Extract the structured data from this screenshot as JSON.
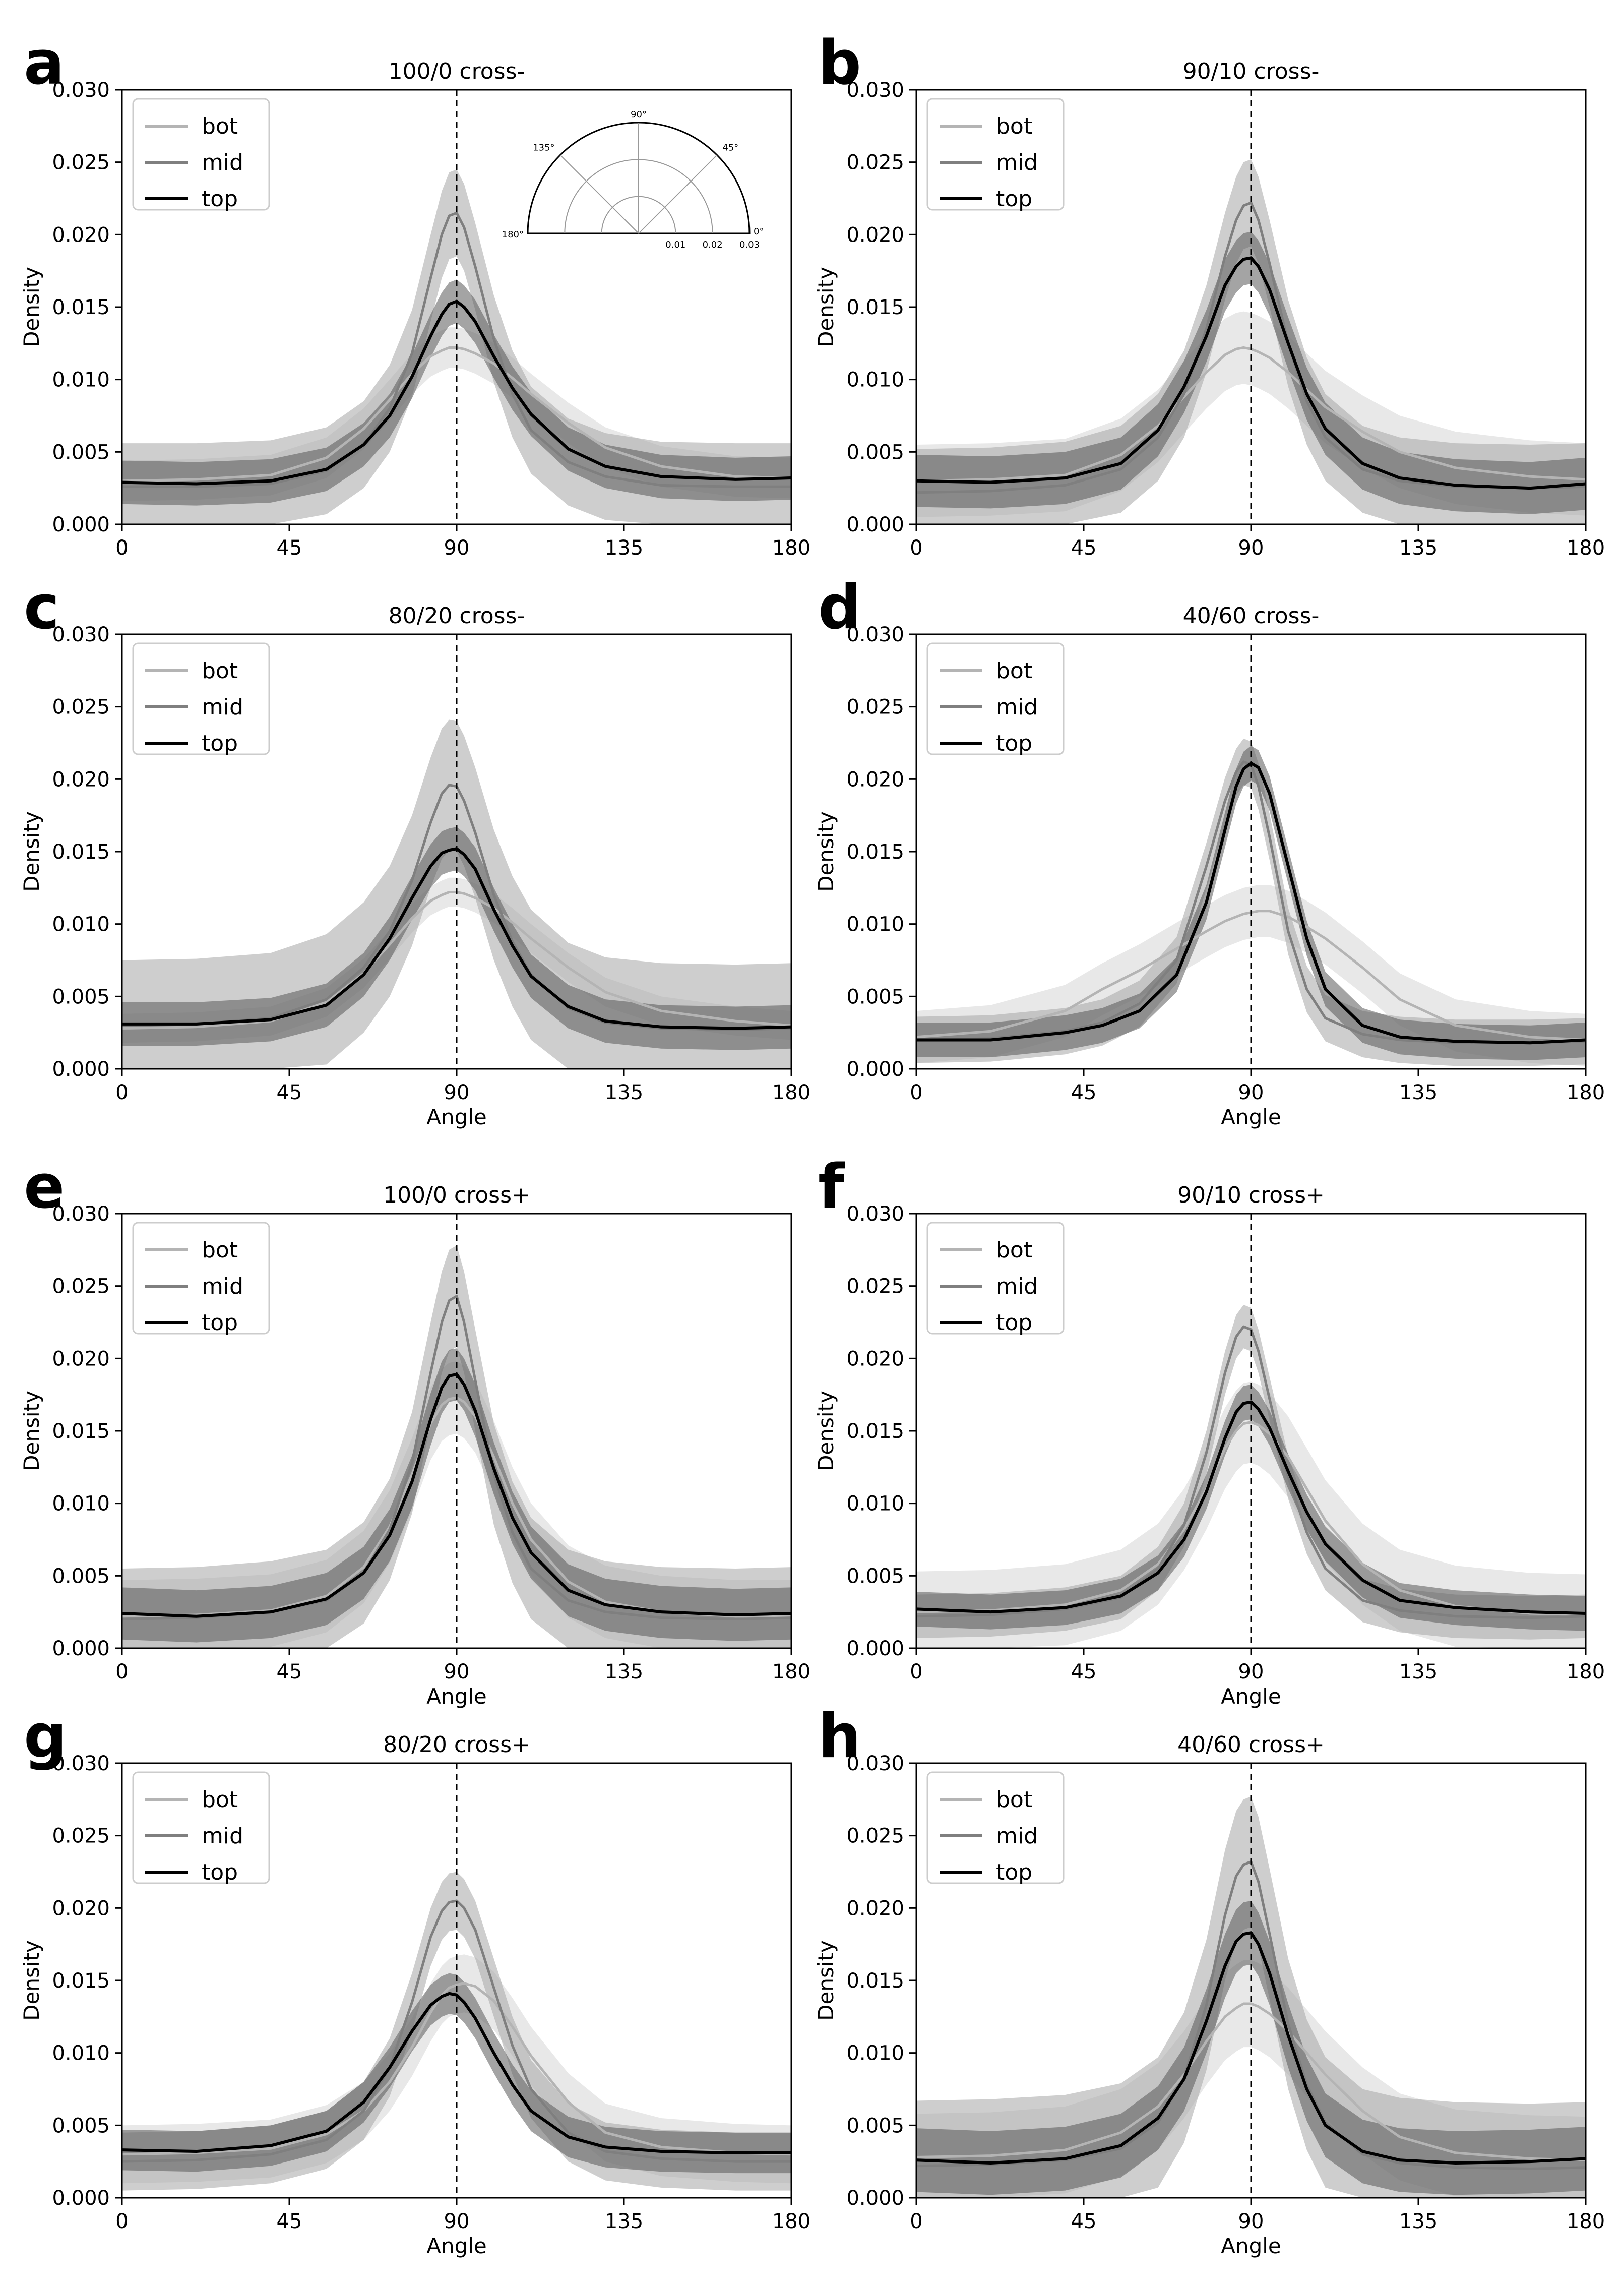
{
  "figure": {
    "xlim": [
      0,
      180
    ],
    "ylim": [
      0,
      0.03
    ],
    "x_ticks": [
      0,
      45,
      90,
      135,
      180
    ],
    "x_tick_labels": [
      "0",
      "45",
      "90",
      "135",
      "180"
    ],
    "y_ticks": [
      0,
      0.005,
      0.01,
      0.015,
      0.02,
      0.025,
      0.03
    ],
    "y_tick_labels": [
      "0.000",
      "0.005",
      "0.010",
      "0.015",
      "0.020",
      "0.025",
      "0.030"
    ],
    "ylabel": "Density",
    "xlabel": "Angle",
    "reference_angle": 90,
    "series_style": {
      "bot": {
        "color": "#b4b4b4",
        "band": "#d6d6d6"
      },
      "mid": {
        "color": "#7f7f7f",
        "band": "#a6a6a6"
      },
      "top": {
        "color": "#000000",
        "band": "#5a5a5a"
      }
    }
  },
  "inset": {
    "panel": "a",
    "angle_labels": [
      "90°",
      "135°",
      "45°",
      "180°",
      "0°"
    ],
    "radius_labels": [
      "0.01",
      "0.02",
      "0.03"
    ]
  },
  "chart_data": [
    {
      "type": "line",
      "panel": "a",
      "title": "100/0  cross-",
      "xlabel": "",
      "x": [
        0,
        20,
        40,
        55,
        65,
        72,
        78,
        83,
        86,
        88,
        90,
        92,
        95,
        100,
        105,
        110,
        120,
        130,
        145,
        165,
        180
      ],
      "series": [
        {
          "name": "bot",
          "band": 0.0014,
          "values": [
            0.003,
            0.0031,
            0.0034,
            0.0046,
            0.0066,
            0.0086,
            0.0104,
            0.0116,
            0.012,
            0.0122,
            0.0122,
            0.0121,
            0.0118,
            0.0111,
            0.0101,
            0.009,
            0.007,
            0.0053,
            0.004,
            0.0033,
            0.0032
          ]
        },
        {
          "name": "mid",
          "band": 0.003,
          "values": [
            0.0026,
            0.0026,
            0.0028,
            0.0037,
            0.0055,
            0.008,
            0.0118,
            0.017,
            0.02,
            0.0213,
            0.0215,
            0.0205,
            0.0178,
            0.0128,
            0.009,
            0.0065,
            0.0043,
            0.0033,
            0.0027,
            0.0026,
            0.0026
          ]
        },
        {
          "name": "top",
          "band": 0.0015,
          "values": [
            0.0029,
            0.0028,
            0.003,
            0.0038,
            0.0055,
            0.0075,
            0.0102,
            0.013,
            0.0145,
            0.0152,
            0.0154,
            0.015,
            0.014,
            0.0116,
            0.0094,
            0.0076,
            0.0052,
            0.004,
            0.0033,
            0.0031,
            0.0032
          ]
        }
      ]
    },
    {
      "type": "line",
      "panel": "b",
      "title": "90/10  cross-",
      "xlabel": "",
      "x": [
        0,
        20,
        40,
        55,
        65,
        72,
        78,
        83,
        86,
        88,
        90,
        92,
        95,
        100,
        105,
        110,
        120,
        130,
        145,
        165,
        180
      ],
      "series": [
        {
          "name": "bot",
          "band": 0.0025,
          "values": [
            0.003,
            0.0031,
            0.0034,
            0.0048,
            0.0068,
            0.0088,
            0.0105,
            0.0117,
            0.0121,
            0.0122,
            0.0121,
            0.0119,
            0.0115,
            0.0105,
            0.0093,
            0.0081,
            0.0064,
            0.005,
            0.0039,
            0.0033,
            0.0031
          ]
        },
        {
          "name": "mid",
          "band": 0.003,
          "values": [
            0.0022,
            0.0023,
            0.0027,
            0.0038,
            0.006,
            0.009,
            0.0135,
            0.0185,
            0.021,
            0.022,
            0.0222,
            0.021,
            0.018,
            0.0125,
            0.0085,
            0.006,
            0.0038,
            0.003,
            0.0026,
            0.0025,
            0.0026
          ]
        },
        {
          "name": "top",
          "band": 0.0018,
          "values": [
            0.003,
            0.0029,
            0.0032,
            0.0042,
            0.0065,
            0.0095,
            0.013,
            0.0165,
            0.0178,
            0.0183,
            0.0184,
            0.0178,
            0.0162,
            0.0125,
            0.009,
            0.0066,
            0.0042,
            0.0032,
            0.0027,
            0.0025,
            0.0028
          ]
        }
      ]
    },
    {
      "type": "line",
      "panel": "c",
      "title": "80/20  cross-",
      "xlabel": "Angle",
      "x": [
        0,
        20,
        40,
        55,
        65,
        72,
        78,
        83,
        86,
        88,
        90,
        92,
        95,
        100,
        105,
        110,
        120,
        130,
        145,
        165,
        180
      ],
      "series": [
        {
          "name": "bot",
          "band": 0.001,
          "values": [
            0.0028,
            0.0029,
            0.0033,
            0.0046,
            0.0066,
            0.0086,
            0.0104,
            0.0116,
            0.012,
            0.0122,
            0.0122,
            0.0121,
            0.0118,
            0.0111,
            0.0101,
            0.009,
            0.007,
            0.0053,
            0.004,
            0.0033,
            0.003
          ]
        },
        {
          "name": "mid",
          "band": 0.0045,
          "values": [
            0.003,
            0.0031,
            0.0035,
            0.0048,
            0.007,
            0.0095,
            0.013,
            0.017,
            0.019,
            0.0196,
            0.0195,
            0.0185,
            0.0163,
            0.012,
            0.0088,
            0.0065,
            0.0042,
            0.0032,
            0.0028,
            0.0027,
            0.0028
          ]
        },
        {
          "name": "top",
          "band": 0.0015,
          "values": [
            0.0031,
            0.0031,
            0.0034,
            0.0044,
            0.0065,
            0.009,
            0.0118,
            0.014,
            0.0149,
            0.0151,
            0.0152,
            0.0148,
            0.0138,
            0.011,
            0.0085,
            0.0064,
            0.0043,
            0.0033,
            0.0029,
            0.0028,
            0.0029
          ]
        }
      ]
    },
    {
      "type": "line",
      "panel": "d",
      "title": "40/60  cross-",
      "xlabel": "Angle",
      "x": [
        0,
        20,
        40,
        50,
        60,
        70,
        78,
        83,
        86,
        88,
        90,
        92,
        95,
        100,
        105,
        110,
        120,
        130,
        145,
        165,
        180
      ],
      "series": [
        {
          "name": "bot",
          "band": 0.0018,
          "values": [
            0.0022,
            0.0026,
            0.004,
            0.0055,
            0.0068,
            0.0083,
            0.0095,
            0.0102,
            0.0105,
            0.0107,
            0.0108,
            0.0109,
            0.0109,
            0.0105,
            0.0098,
            0.009,
            0.007,
            0.0048,
            0.003,
            0.0022,
            0.002
          ]
        },
        {
          "name": "mid",
          "band": 0.0016,
          "values": [
            0.002,
            0.0021,
            0.0026,
            0.0032,
            0.0045,
            0.0075,
            0.014,
            0.0185,
            0.0205,
            0.0212,
            0.021,
            0.0195,
            0.016,
            0.0095,
            0.0055,
            0.0035,
            0.0024,
            0.002,
            0.0018,
            0.0018,
            0.0019
          ]
        },
        {
          "name": "top",
          "band": 0.0012,
          "values": [
            0.002,
            0.002,
            0.0025,
            0.003,
            0.004,
            0.0065,
            0.0115,
            0.0165,
            0.0195,
            0.0207,
            0.0211,
            0.0208,
            0.019,
            0.014,
            0.009,
            0.0055,
            0.003,
            0.0022,
            0.0019,
            0.0018,
            0.002
          ]
        }
      ]
    },
    {
      "type": "line",
      "panel": "e",
      "title": "100/0  cross+",
      "xlabel": "Angle",
      "x": [
        0,
        20,
        40,
        55,
        65,
        72,
        78,
        83,
        86,
        88,
        90,
        92,
        95,
        100,
        105,
        110,
        120,
        130,
        145,
        165,
        180
      ],
      "series": [
        {
          "name": "bot",
          "band": 0.0025,
          "values": [
            0.0022,
            0.0023,
            0.0026,
            0.0036,
            0.0056,
            0.0084,
            0.012,
            0.0155,
            0.0168,
            0.0172,
            0.0173,
            0.017,
            0.016,
            0.0132,
            0.01,
            0.0075,
            0.0046,
            0.0032,
            0.0025,
            0.0022,
            0.0022
          ]
        },
        {
          "name": "mid",
          "band": 0.0035,
          "values": [
            0.002,
            0.0021,
            0.0025,
            0.0033,
            0.0052,
            0.0082,
            0.0128,
            0.019,
            0.0225,
            0.024,
            0.0243,
            0.0225,
            0.0185,
            0.012,
            0.008,
            0.0055,
            0.0033,
            0.0025,
            0.0021,
            0.002,
            0.0021
          ]
        },
        {
          "name": "top",
          "band": 0.0018,
          "values": [
            0.0024,
            0.0022,
            0.0025,
            0.0034,
            0.0052,
            0.0078,
            0.0115,
            0.0158,
            0.018,
            0.0188,
            0.0189,
            0.0182,
            0.0164,
            0.0124,
            0.009,
            0.0066,
            0.004,
            0.003,
            0.0025,
            0.0023,
            0.0024
          ]
        }
      ]
    },
    {
      "type": "line",
      "panel": "f",
      "title": "90/10  cross+",
      "xlabel": "Angle",
      "x": [
        0,
        20,
        40,
        55,
        65,
        72,
        78,
        83,
        86,
        88,
        90,
        92,
        95,
        100,
        105,
        110,
        120,
        130,
        145,
        165,
        180
      ],
      "series": [
        {
          "name": "bot",
          "band": 0.0028,
          "values": [
            0.0025,
            0.0026,
            0.003,
            0.004,
            0.0058,
            0.0082,
            0.011,
            0.0138,
            0.015,
            0.0155,
            0.0156,
            0.0154,
            0.0148,
            0.0132,
            0.011,
            0.0088,
            0.0058,
            0.004,
            0.0029,
            0.0024,
            0.0023
          ]
        },
        {
          "name": "mid",
          "band": 0.0015,
          "values": [
            0.0022,
            0.0023,
            0.0027,
            0.0035,
            0.0055,
            0.0085,
            0.0135,
            0.019,
            0.0215,
            0.0222,
            0.022,
            0.0205,
            0.0172,
            0.0118,
            0.008,
            0.0055,
            0.0033,
            0.0026,
            0.0022,
            0.0021,
            0.0022
          ]
        },
        {
          "name": "top",
          "band": 0.0012,
          "values": [
            0.0027,
            0.0025,
            0.0028,
            0.0036,
            0.0052,
            0.0075,
            0.0108,
            0.0145,
            0.0163,
            0.0169,
            0.017,
            0.0165,
            0.0152,
            0.0122,
            0.0094,
            0.0072,
            0.0047,
            0.0033,
            0.0028,
            0.0025,
            0.0024
          ]
        }
      ]
    },
    {
      "type": "line",
      "panel": "g",
      "title": "80/20  cross+",
      "xlabel": "Angle",
      "x": [
        0,
        20,
        40,
        55,
        65,
        72,
        78,
        83,
        86,
        88,
        90,
        92,
        95,
        100,
        105,
        110,
        120,
        130,
        145,
        165,
        180
      ],
      "series": [
        {
          "name": "bot",
          "band": 0.002,
          "values": [
            0.003,
            0.0031,
            0.0034,
            0.0044,
            0.006,
            0.008,
            0.0104,
            0.0128,
            0.014,
            0.0145,
            0.0147,
            0.0148,
            0.0146,
            0.0136,
            0.0118,
            0.0098,
            0.0066,
            0.0045,
            0.0035,
            0.0031,
            0.003
          ]
        },
        {
          "name": "mid",
          "band": 0.002,
          "values": [
            0.0025,
            0.0026,
            0.003,
            0.004,
            0.006,
            0.009,
            0.0135,
            0.018,
            0.0198,
            0.0204,
            0.0205,
            0.02,
            0.0185,
            0.0145,
            0.0105,
            0.0075,
            0.0045,
            0.0032,
            0.0027,
            0.0025,
            0.0025
          ]
        },
        {
          "name": "top",
          "band": 0.0014,
          "values": [
            0.0033,
            0.0032,
            0.0036,
            0.0046,
            0.0066,
            0.009,
            0.0115,
            0.0133,
            0.0139,
            0.0141,
            0.014,
            0.0135,
            0.0124,
            0.01,
            0.0078,
            0.006,
            0.0042,
            0.0035,
            0.0032,
            0.0031,
            0.0031
          ]
        }
      ]
    },
    {
      "type": "line",
      "panel": "h",
      "title": "40/60  cross+",
      "xlabel": "Angle",
      "x": [
        0,
        20,
        40,
        55,
        65,
        72,
        78,
        83,
        86,
        88,
        90,
        92,
        95,
        100,
        105,
        110,
        120,
        130,
        145,
        165,
        180
      ],
      "series": [
        {
          "name": "bot",
          "band": 0.003,
          "values": [
            0.0028,
            0.0029,
            0.0033,
            0.0045,
            0.0063,
            0.0085,
            0.0108,
            0.0125,
            0.0131,
            0.0134,
            0.0134,
            0.0132,
            0.0127,
            0.0115,
            0.01,
            0.0085,
            0.006,
            0.0042,
            0.0031,
            0.0027,
            0.0026
          ]
        },
        {
          "name": "mid",
          "band": 0.0045,
          "values": [
            0.0022,
            0.0023,
            0.0026,
            0.0034,
            0.0052,
            0.0083,
            0.0133,
            0.0195,
            0.0222,
            0.023,
            0.0232,
            0.0218,
            0.0182,
            0.012,
            0.0078,
            0.0052,
            0.003,
            0.0024,
            0.0021,
            0.002,
            0.0021
          ]
        },
        {
          "name": "top",
          "band": 0.0022,
          "values": [
            0.0026,
            0.0024,
            0.0027,
            0.0036,
            0.0055,
            0.0082,
            0.0122,
            0.016,
            0.0177,
            0.0182,
            0.0183,
            0.0175,
            0.0155,
            0.0112,
            0.0075,
            0.005,
            0.0032,
            0.0026,
            0.0024,
            0.0025,
            0.0027
          ]
        }
      ]
    }
  ]
}
